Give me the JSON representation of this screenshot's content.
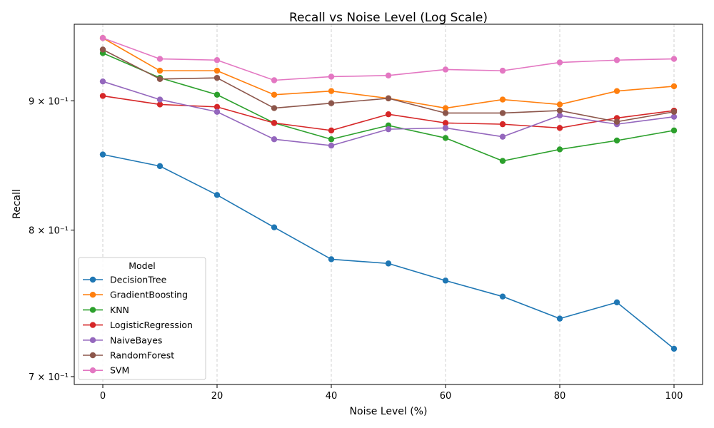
{
  "chart_data": {
    "type": "line",
    "title": "Recall vs Noise Level (Log Scale)",
    "xlabel": "Noise Level (%)",
    "ylabel": "Recall",
    "yscale": "log",
    "xlim": [
      -5,
      105
    ],
    "ylim": [
      0.695,
      0.965
    ],
    "xticks": [
      0,
      20,
      40,
      60,
      80,
      100
    ],
    "xtick_labels": [
      "0",
      "20",
      "40",
      "60",
      "80",
      "100"
    ],
    "yticks": [
      0.7,
      0.8,
      0.9
    ],
    "ytick_labels": [
      "7 × 10⁻¹",
      "8 × 10⁻¹",
      "9 × 10⁻¹"
    ],
    "grid": "x-axis dashed",
    "legend": {
      "title": "Model",
      "placement": "lower-left"
    },
    "x": [
      0,
      10,
      20,
      30,
      40,
      50,
      60,
      70,
      80,
      90,
      100
    ],
    "series": [
      {
        "name": "DecisionTree",
        "color": "#1f77b4",
        "values": [
          0.857,
          0.848,
          0.826,
          0.802,
          0.779,
          0.776,
          0.764,
          0.753,
          0.738,
          0.749,
          0.718
        ]
      },
      {
        "name": "GradientBoosting",
        "color": "#ff7f0e",
        "values": [
          0.953,
          0.925,
          0.925,
          0.905,
          0.908,
          0.902,
          0.894,
          0.901,
          0.897,
          0.908,
          0.912
        ]
      },
      {
        "name": "KNN",
        "color": "#2ca02c",
        "values": [
          0.94,
          0.919,
          0.905,
          0.882,
          0.869,
          0.88,
          0.87,
          0.852,
          0.861,
          0.868,
          0.876
        ]
      },
      {
        "name": "LogisticRegression",
        "color": "#d62728",
        "values": [
          0.904,
          0.897,
          0.895,
          0.882,
          0.876,
          0.889,
          0.882,
          0.881,
          0.878,
          0.886,
          0.892
        ]
      },
      {
        "name": "NaiveBayes",
        "color": "#9467bd",
        "values": [
          0.916,
          0.901,
          0.891,
          0.869,
          0.864,
          0.877,
          0.878,
          0.871,
          0.888,
          0.881,
          0.887
        ]
      },
      {
        "name": "RandomForest",
        "color": "#8c564b",
        "values": [
          0.943,
          0.918,
          0.919,
          0.894,
          0.898,
          0.902,
          0.89,
          0.89,
          0.892,
          0.883,
          0.891
        ]
      },
      {
        "name": "SVM",
        "color": "#e377c2",
        "values": [
          0.953,
          0.935,
          0.934,
          0.917,
          0.92,
          0.921,
          0.926,
          0.925,
          0.932,
          0.934,
          0.935
        ]
      }
    ]
  }
}
